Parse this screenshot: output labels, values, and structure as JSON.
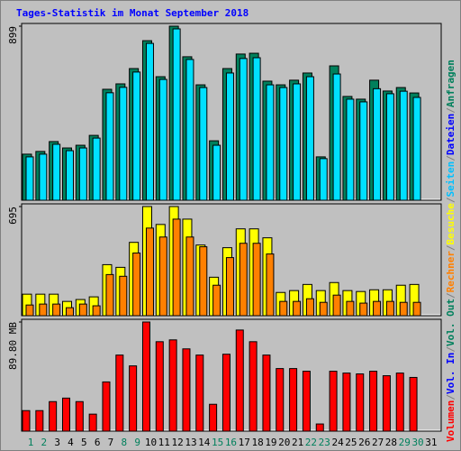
{
  "separator": "/",
  "legend": [
    {
      "name": "Volumen",
      "color": "#ff0000"
    },
    {
      "name": "Vol. In",
      "color": "#0000ff"
    },
    {
      "name": "Vol. Out",
      "color": "#00805c"
    },
    {
      "name": "Rechner",
      "color": "#ff8000"
    },
    {
      "name": "Besuche",
      "color": "#ffff00"
    },
    {
      "name": "Seiten",
      "color": "#00c0ff"
    },
    {
      "name": "Dateien",
      "color": "#0000ff"
    },
    {
      "name": "Anfragen",
      "color": "#00805c"
    }
  ],
  "chart_data": [
    {
      "type": "bar",
      "title": "Tages-Statistik im Monat September 2018",
      "ylim": [
        0,
        899
      ],
      "yticks": [
        899
      ],
      "series": [
        {
          "color": "#00805c",
          "values": [
            238,
            252,
            303,
            270,
            284,
            335,
            573,
            601,
            680,
            824,
            638,
            899,
            741,
            596,
            307,
            680,
            755,
            759,
            615,
            596,
            620,
            657,
            224,
            694,
            536,
            522,
            620,
            564,
            582,
            554,
            null
          ]
        },
        {
          "color": "#00e0ff",
          "values": [
            224,
            238,
            289,
            256,
            270,
            321,
            555,
            583,
            662,
            810,
            624,
            885,
            727,
            582,
            284,
            657,
            732,
            736,
            596,
            582,
            601,
            638,
            215,
            652,
            522,
            508,
            576,
            550,
            563,
            531,
            null
          ]
        }
      ]
    },
    {
      "type": "bar",
      "ylim": [
        0,
        695
      ],
      "yticks": [
        695
      ],
      "series": [
        {
          "color": "#ffff00",
          "values": [
            137,
            137,
            137,
            91,
            103,
            120,
            325,
            308,
            467,
            695,
            581,
            695,
            615,
            450,
            245,
            433,
            553,
            553,
            496,
            148,
            160,
            199,
            160,
            211,
            160,
            154,
            165,
            165,
            194,
            199,
            null
          ]
        },
        {
          "color": "#ff8000",
          "values": [
            68,
            74,
            74,
            51,
            74,
            63,
            262,
            251,
            399,
            558,
            501,
            615,
            501,
            439,
            194,
            370,
            461,
            461,
            393,
            91,
            91,
            108,
            85,
            131,
            91,
            80,
            91,
            91,
            85,
            85,
            null
          ]
        }
      ]
    },
    {
      "type": "bar",
      "ylim": [
        0,
        89.8
      ],
      "yticks": [
        {
          "value": 89.8,
          "label": "89.80 MB"
        }
      ],
      "categories": [
        "1",
        "2",
        "3",
        "4",
        "5",
        "6",
        "7",
        "8",
        "9",
        "10",
        "11",
        "12",
        "13",
        "14",
        "15",
        "16",
        "17",
        "18",
        "19",
        "20",
        "21",
        "22",
        "23",
        "24",
        "25",
        "26",
        "27",
        "28",
        "29",
        "30",
        "31"
      ],
      "category_colors": [
        "#00805c",
        "#00805c",
        "#000000",
        "#000000",
        "#000000",
        "#000000",
        "#000000",
        "#00805c",
        "#00805c",
        "#000000",
        "#000000",
        "#000000",
        "#000000",
        "#000000",
        "#00805c",
        "#00805c",
        "#000000",
        "#000000",
        "#000000",
        "#000000",
        "#000000",
        "#00805c",
        "#00805c",
        "#000000",
        "#000000",
        "#000000",
        "#000000",
        "#000000",
        "#00805c",
        "#00805c",
        "#000000"
      ],
      "series": [
        {
          "color": "#ff0000",
          "values": [
            16.9,
            16.9,
            24.3,
            27.2,
            24.3,
            14.0,
            40.5,
            62.6,
            53.7,
            89.8,
            73.6,
            75.1,
            67.7,
            62.6,
            22.1,
            63.3,
            83.2,
            73.6,
            62.6,
            51.5,
            51.5,
            49.3,
            5.9,
            49.3,
            47.8,
            47.1,
            49.3,
            45.6,
            47.8,
            44.2,
            null
          ]
        }
      ]
    }
  ]
}
